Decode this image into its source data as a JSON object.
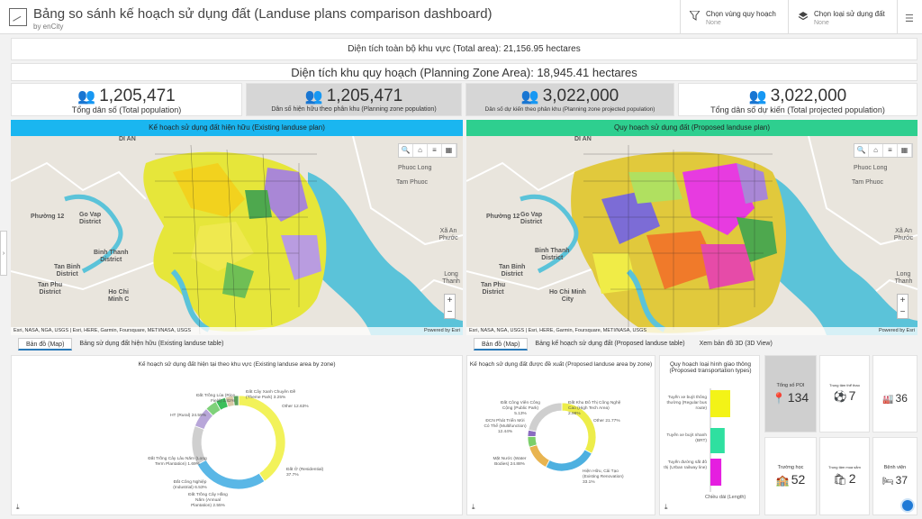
{
  "header": {
    "title": "Bảng so sánh kế hoạch sử dụng đất (Landuse plans comparison dashboard)",
    "subtitle": "by enCity",
    "filter_zone_label": "Chọn vùng quy hoạch",
    "filter_zone_value": "None",
    "filter_type_label": "Chọn loại sử dụng đất",
    "filter_type_value": "None",
    "filter_icon": "funnel-icon",
    "layers_icon": "layers-icon",
    "menu_icon": "hamburger-icon"
  },
  "banners": {
    "total_area": "Diện tích toàn bộ khu vực (Total area): 21,156.95 hectares",
    "planning_area": "Diện tích khu quy hoạch (Planning Zone Area): 18,945.41 hectares"
  },
  "stats": [
    {
      "value": "1,205,471",
      "label": "Tổng dân số (Total population)"
    },
    {
      "value": "1,205,471",
      "label": "Dân số hiện hữu theo phân khu (Planning zone population)"
    },
    {
      "value": "3,022,000",
      "label": "Dân số dự kiến theo phân khu (Planning zone projected population)"
    },
    {
      "value": "3,022,000",
      "label": "Tổng dân số dự kiến (Total projected population)"
    }
  ],
  "maps": {
    "left_title": "Kế hoạch sử dụng đất hiện hữu (Existing landuse plan)",
    "right_title": "Quy hoạch sử dụng đất (Proposed landuse plan)",
    "left_header_color": "#1ab6f0",
    "right_header_color": "#2ecf8f",
    "attribution": "Esri, NASA, NGA, USGS | Esri, HERE, Garmin, Foursquare, METI/NASA, USGS",
    "powered": "Powered by Esri",
    "places_left": {
      "go_vap": "Go Vap\nDistrict",
      "binh_thanh": "Binh Thanh\nDistrict",
      "tan_binh": "Tan Binh\nDistrict",
      "tan_phu": "Tan Phu\nDistrict",
      "ho_chi_minh": "Ho Chi\nMinh C",
      "phuong_12": "Phường 12",
      "phuoc_long": "Phuoc Long",
      "tam_phuoc": "Tam Phuoc",
      "xa_an_phuoc": "Xã An Phước",
      "long_thanh": "Long Thanh",
      "di_an": "DI AN"
    },
    "places_right": {
      "go_vap": "Go Vap\nDistrict",
      "binh_thanh": "Binh Thanh\nDistrict",
      "tan_binh": "Tan Binh\nDistrict",
      "tan_phu": "Tan Phu\nDistrict",
      "ho_chi_minh": "Ho Chi Minh\nCity",
      "phuong_12": "Phường 12",
      "phuoc_long": "Phuoc Long",
      "tam_phuoc": "Tam Phuoc",
      "xa_an_phuoc": "Xã An Phước",
      "long_thanh": "Long Thanh",
      "di_an": "DI AN"
    }
  },
  "tabs_left": [
    "Bản đồ (Map)",
    "Bảng sử dụng đất hiện hữu (Existing landuse table)"
  ],
  "tabs_right": [
    "Bản đồ (Map)",
    "Bảng kế hoạch sử dụng đất (Proposed landuse table)",
    "Xem bản đồ 3D (3D View)"
  ],
  "donut_existing": {
    "title": "Kế hoạch sử dụng đất hiện tại theo khu vực (Existing landuse area by zone)",
    "labels": {
      "top_left": "Đất Trồng Lúa (Rice Field) 3.82%",
      "top_mid": "Đất Cây Xanh Chuyên Đề (Theme Park) 3.25%",
      "top_right": "Other 12.63%",
      "mid_left": "HT (Rural) 24.59%",
      "bottom_left1": "Đất Trồng Cây Lâu Năm (Long Term Plantation) 1.69%",
      "bottom_left2": "Đất Công Nghiệp (Industrial) 6.53%",
      "bottom_left3": "Đất Trồng Cây Hằng Năm (Annual Plantation) 2.55%",
      "right": "Đất Ở (Residential) 37.7%"
    }
  },
  "donut_proposed": {
    "title": "Kế hoạch sử dụng đất được đề xuất (Proposed landuse area by zone)",
    "labels": {
      "top_left": "Đất Công Viên Công Cộng (Public Park) 5.13%",
      "top_right": "Đất Khu Đô Thị Công Nghệ Cao (High Tech Area) 2.98%",
      "right": "Other 21.77%",
      "mid_left": "ĐCN Phát Triển Mới Có Thể (Multifunction) 12.44%",
      "bottom_left": "Mặt Nước (Water Bodies) 24.88%",
      "bottom_right": "Hiện Hữu, Cải Tạo (Existing Renovation) 33.1%"
    }
  },
  "transport": {
    "title": "Quy hoạch loại hình giao thông (Proposed transportation types)",
    "x_label": "Chiều dài (Length)",
    "categories": [
      "Tuyến xe buýt thông thường (Regular bus route)",
      "Tuyến xe buýt nhanh (BRT)",
      "Tuyến đường sắt đô thị (Urban railway line)"
    ]
  },
  "chart_data": [
    {
      "type": "pie",
      "title": "Kế hoạch sử dụng đất hiện tại theo khu vực (Existing landuse area by zone)",
      "categories": [
        "Đất Ở (Residential)",
        "HT (Rural)",
        "Other",
        "Đất Công Nghiệp (Industrial)",
        "Đất Trồng Lúa (Rice Field)",
        "Đất Cây Xanh Chuyên Đề (Theme Park)",
        "Đất Trồng Cây Hằng Năm (Annual Plantation)",
        "Đất Trồng Cây Lâu Năm (Long Term Plantation)"
      ],
      "values": [
        37.7,
        24.59,
        12.63,
        6.53,
        3.82,
        3.25,
        2.55,
        1.69
      ],
      "colors": [
        "#f2f25a",
        "#5ab7e6",
        "#cfcfcf",
        "#b8a6d9",
        "#7fd17a",
        "#3bbf5a",
        "#d9c8a6",
        "#5aa05a"
      ]
    },
    {
      "type": "pie",
      "title": "Kế hoạch sử dụng đất được đề xuất (Proposed landuse area by zone)",
      "categories": [
        "Hiện Hữu, Cải Tạo (Existing Renovation)",
        "Mặt Nước (Water Bodies)",
        "ĐCN Phát Triển Mới Có Thể (Multifunction)",
        "Đất Công Viên Công Cộng (Public Park)",
        "Đất Khu Đô Thị Công Nghệ Cao (High Tech Area)",
        "Other"
      ],
      "values": [
        33.1,
        24.88,
        12.44,
        5.13,
        2.98,
        21.77
      ],
      "colors": [
        "#eded4a",
        "#4db0e0",
        "#e8b450",
        "#7ccf6a",
        "#8a6cc0",
        "#cfcfcf"
      ]
    },
    {
      "type": "bar",
      "title": "Quy hoạch loại hình giao thông (Proposed transportation types)",
      "categories": [
        "Tuyến xe buýt thông thường (Regular bus route)",
        "Tuyến xe buýt nhanh (BRT)",
        "Tuyến đường sắt đô thị (Urban railway line)"
      ],
      "values": [
        1.0,
        0.72,
        0.55
      ],
      "colors": [
        "#f3f317",
        "#2fe0a0",
        "#e51ee0"
      ],
      "xlabel": "Chiều dài (Length)"
    }
  ],
  "kpis": [
    {
      "label": "Tổng số POI",
      "value": "134",
      "icon": "map-pin-icon"
    },
    {
      "label": "Trung tâm thể thao",
      "value": "7",
      "icon": "soccer-ball-icon"
    },
    {
      "label": "",
      "value": "36",
      "icon": "factory-icon"
    },
    {
      "label": "Trường học",
      "value": "52",
      "icon": "school-icon"
    },
    {
      "label": "Trung tâm mua sắm",
      "value": "2",
      "icon": "shopping-bag-icon"
    },
    {
      "label": "Bệnh viện",
      "value": "37",
      "icon": "hospital-bed-icon"
    }
  ]
}
